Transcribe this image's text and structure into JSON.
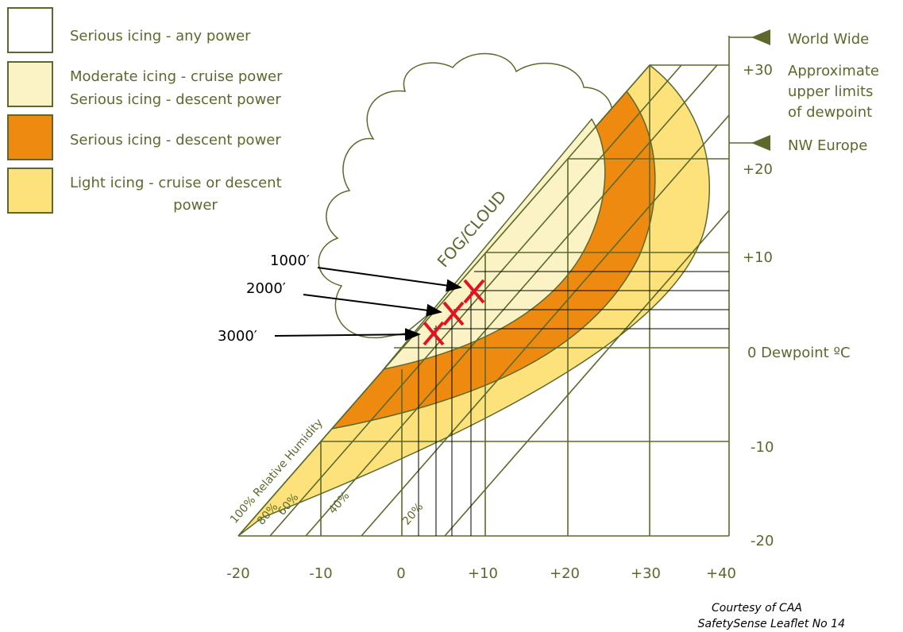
{
  "legend": [
    {
      "lines": [
        "Serious icing - any power"
      ]
    },
    {
      "lines": [
        "Moderate icing - cruise power",
        "Serious icing - descent power"
      ]
    },
    {
      "lines": [
        "Serious icing - descent power"
      ]
    },
    {
      "lines": [
        "Light icing - cruise or descent",
        "power"
      ]
    }
  ],
  "limits": {
    "world": "World Wide",
    "note": [
      "Approximate",
      "upper limits",
      "of dewpoint"
    ],
    "europe": "NW Europe"
  },
  "dewpoint_labels": [
    "+30",
    "+20",
    "+10",
    "0 Dewpoint ºC",
    "-10",
    "-20"
  ],
  "temperature_labels": [
    "-20",
    "-10",
    "0",
    "+10",
    "+20",
    "+30",
    "+40"
  ],
  "fog": "FOG/CLOUD",
  "humidity": [
    "100% Relative Humidity",
    "80%",
    "60%",
    "40%",
    "20%"
  ],
  "heights": [
    "1000′",
    "2000′",
    "3000′"
  ],
  "credit": [
    "Courtesy of CAA",
    "SafetySense Leaflet No 14"
  ]
}
